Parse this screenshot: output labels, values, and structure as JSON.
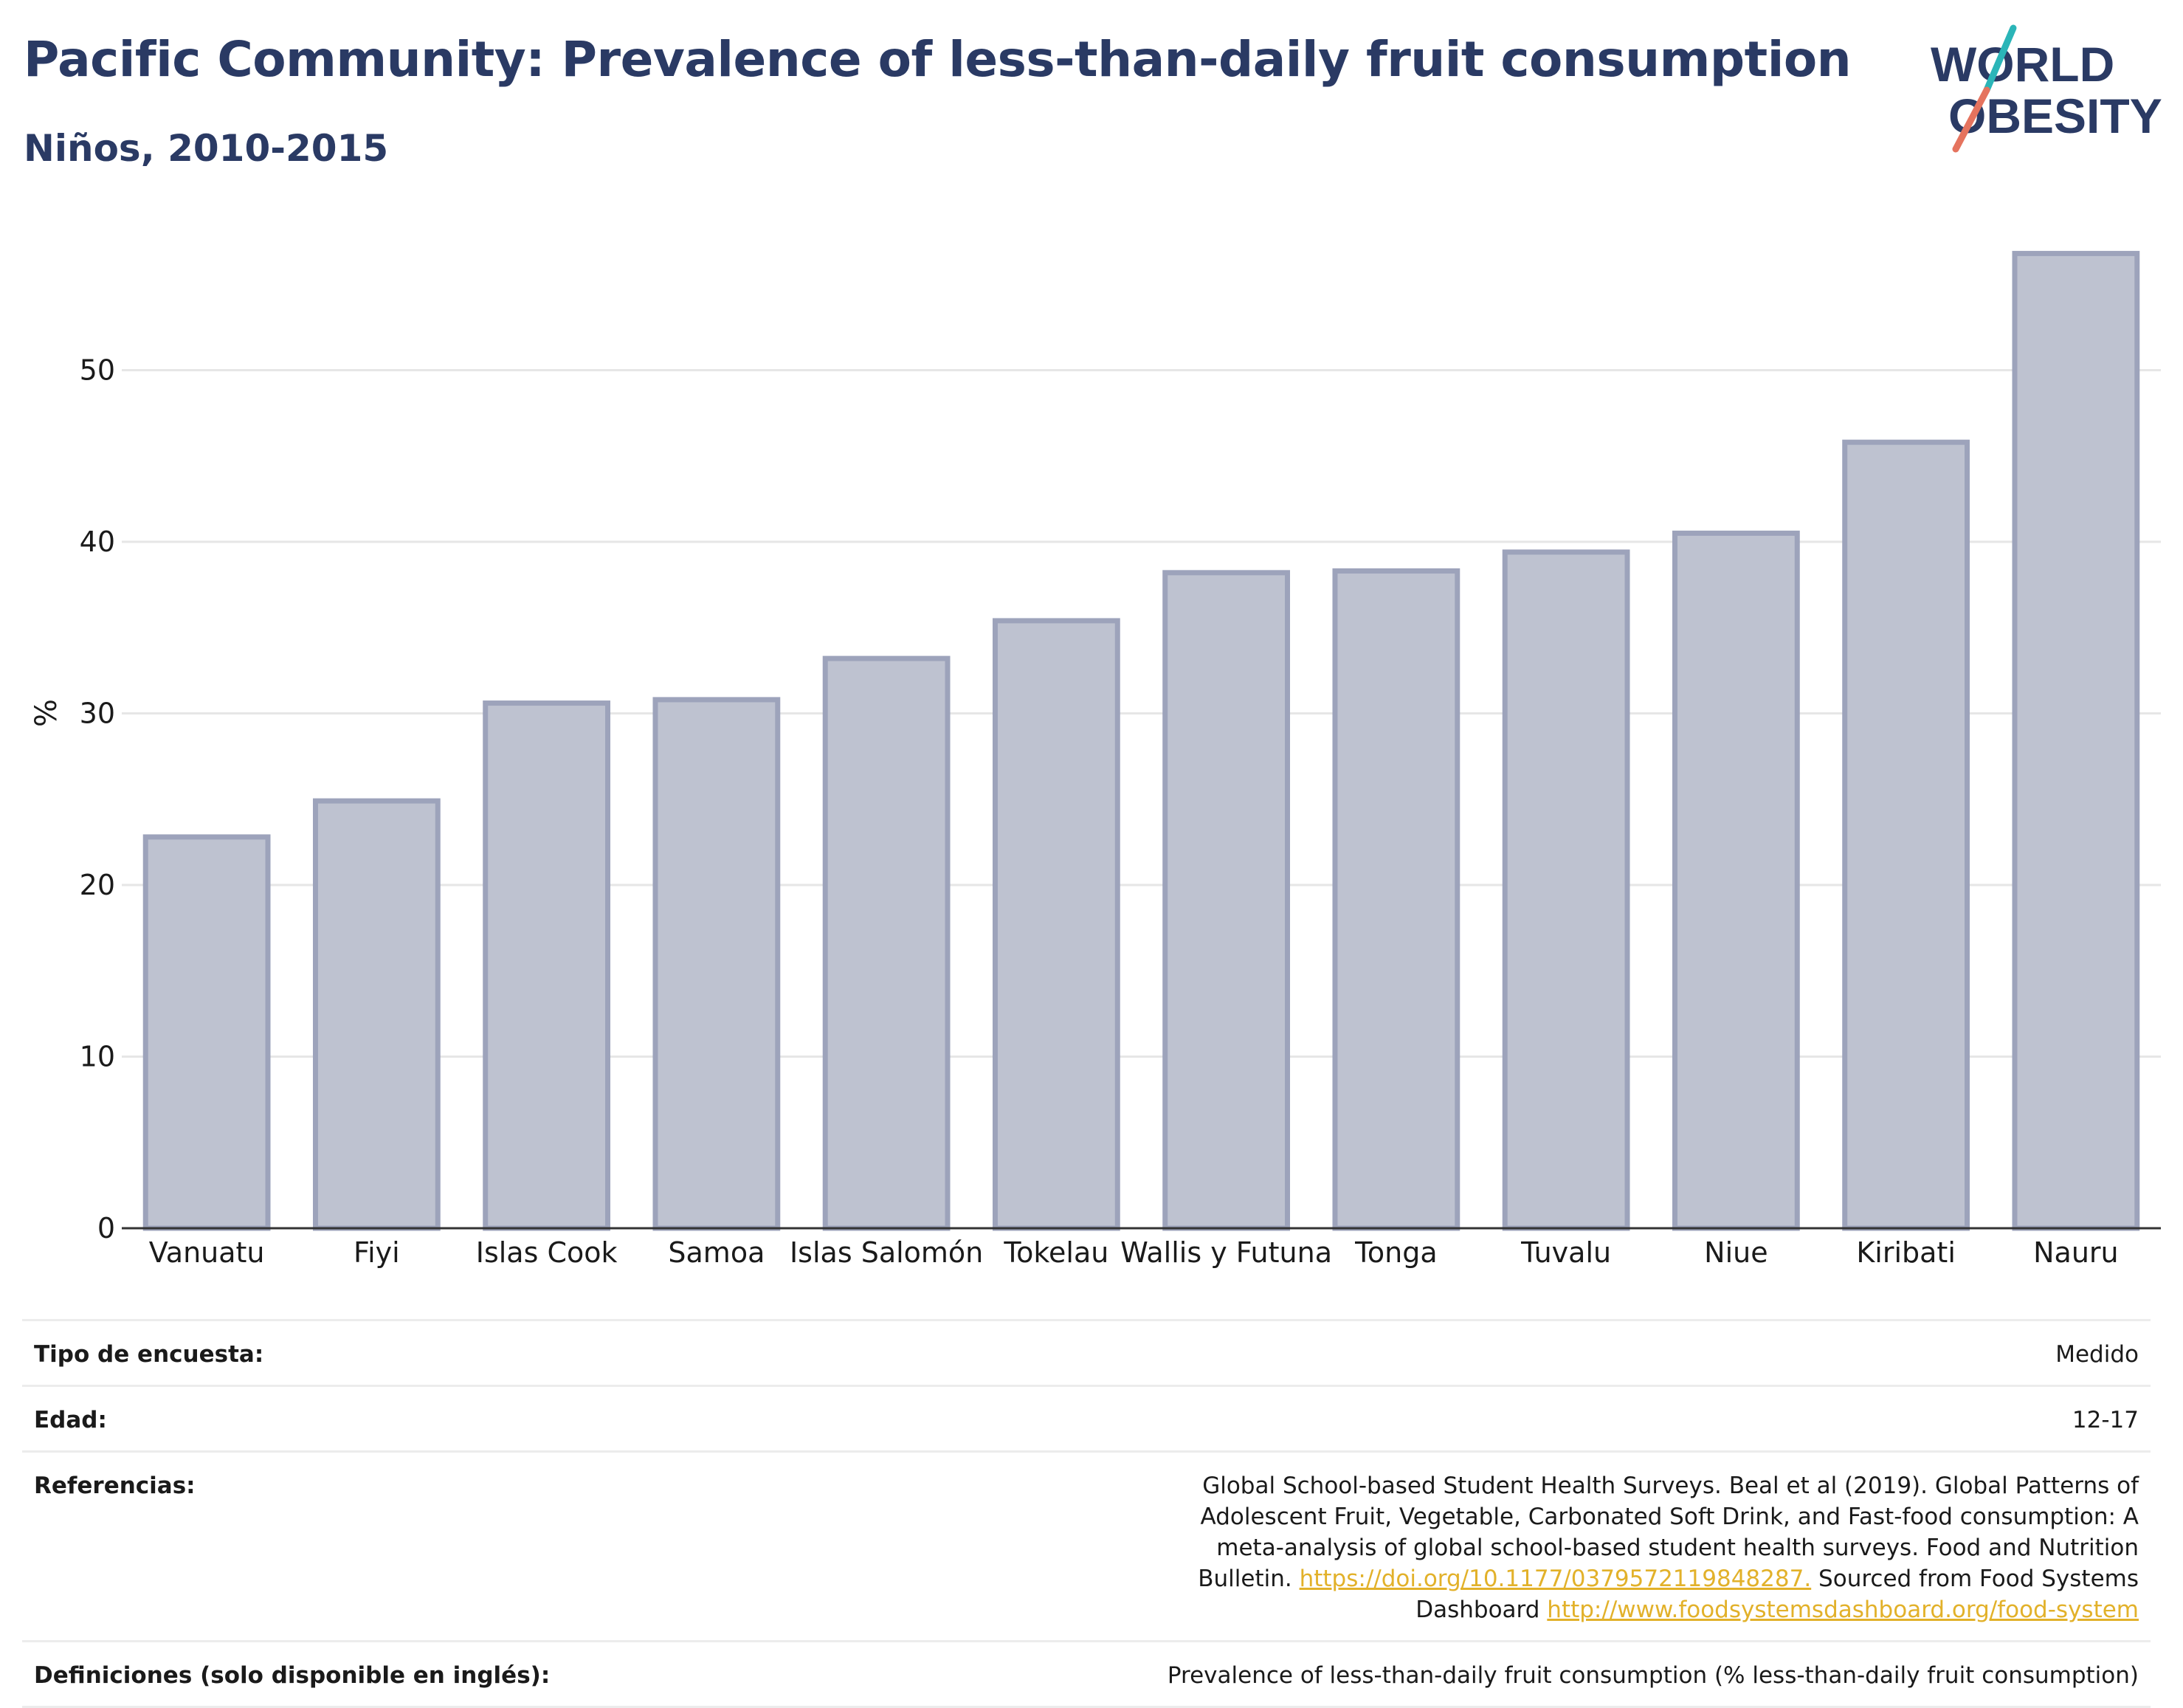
{
  "header": {
    "title": "Pacific Community: Prevalence of less-than-daily fruit consumption",
    "subtitle": "Niños, 2010-2015"
  },
  "logo": {
    "line1": "WORLD",
    "line2": "OBESITY",
    "colors": {
      "text": "#2a3a64",
      "slash_top": "#2bb5b8",
      "slash_bottom": "#e5735e"
    }
  },
  "colors": {
    "bar_fill": "#bec2d0",
    "bar_stroke": "#9da3bb",
    "axis": "#333333",
    "grid": "#e6e6e6",
    "title": "#2a3a64",
    "link": "#e2b12a"
  },
  "chart_data": {
    "type": "bar",
    "title": "Pacific Community: Prevalence of less-than-daily fruit consumption",
    "subtitle": "Niños, 2010-2015",
    "xlabel": "",
    "ylabel": "%",
    "ylim": [
      0,
      57
    ],
    "yticks": [
      0,
      10,
      20,
      30,
      40,
      50
    ],
    "grid": true,
    "categories": [
      "Vanuatu",
      "Fiyi",
      "Islas Cook",
      "Samoa",
      "Islas Salomón",
      "Tokelau",
      "Wallis y Futuna",
      "Tonga",
      "Tuvalu",
      "Niue",
      "Kiribati",
      "Nauru"
    ],
    "values": [
      22.8,
      24.9,
      30.6,
      30.8,
      33.2,
      35.4,
      38.2,
      38.3,
      39.4,
      40.5,
      45.8,
      56.8
    ]
  },
  "info": {
    "rows": [
      {
        "key": "Tipo de encuesta:",
        "value": "Medido"
      },
      {
        "key": "Edad:",
        "value": "12-17"
      },
      {
        "key": "Referencias:",
        "text1": "Global School-based Student Health Surveys. Beal et al (2019). Global Patterns of Adolescent Fruit, Vegetable, Carbonated Soft Drink, and Fast-food consumption: A meta-analysis of global school-based student health surveys. Food and Nutrition Bulletin.",
        "link1": "https://doi.org/10.1177/0379572119848287.",
        "text2": "Sourced from Food Systems Dashboard",
        "link2": "http://www.foodsystemsdashboard.org/food-system"
      },
      {
        "key": "Definiciones (solo disponible en inglés):",
        "value": "Prevalence of less-than-daily fruit consumption (% less-than-daily fruit consumption)"
      }
    ]
  }
}
